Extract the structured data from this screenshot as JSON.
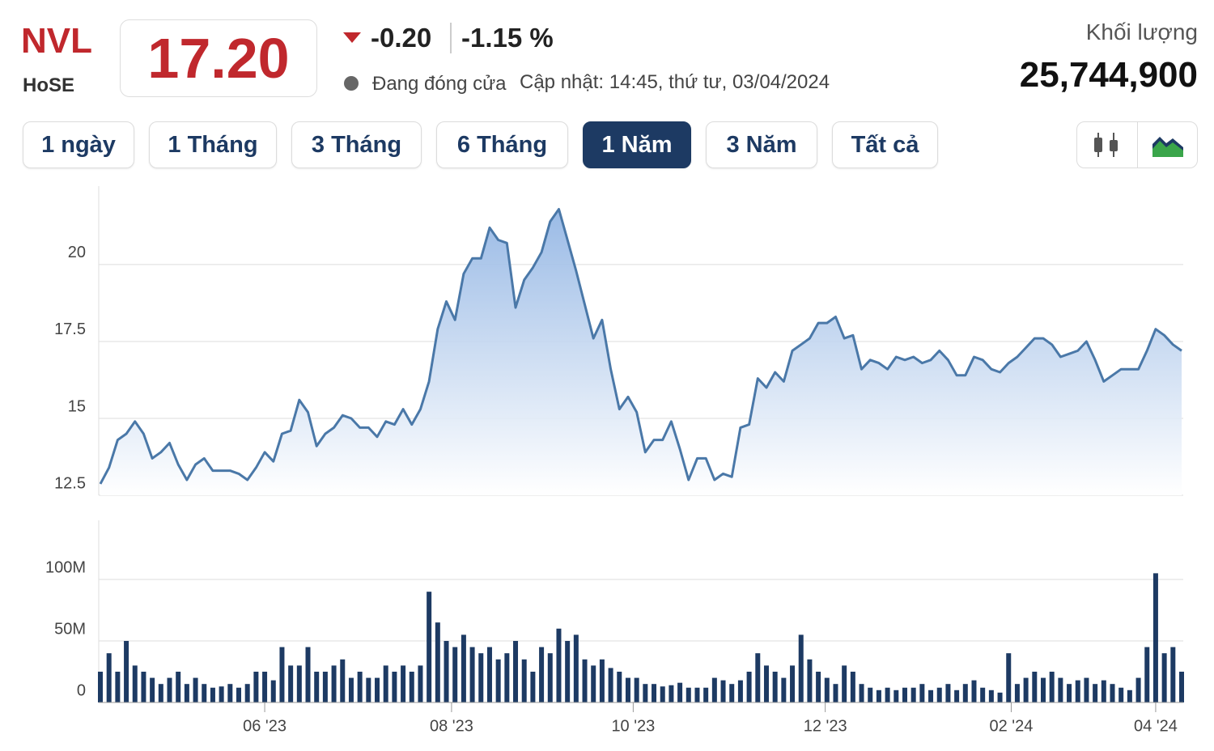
{
  "header": {
    "symbol": "NVL",
    "exchange": "HoSE",
    "price": "17.20",
    "change": "-0.20",
    "change_pct": "-1.15 %",
    "status": "Đang đóng cửa",
    "updated": "Cập nhật: 14:45, thứ tư, 03/04/2024",
    "volume_label": "Khối lượng",
    "volume": "25,744,900"
  },
  "tabs": {
    "items": [
      "1 ngày",
      "1 Tháng",
      "3 Tháng",
      "6 Tháng",
      "1 Năm",
      "3 Năm",
      "Tất cả"
    ],
    "active": 4
  },
  "chart_data": [
    {
      "type": "area",
      "color": "#4a78a8",
      "grid": true,
      "xlim": [
        0,
        125
      ],
      "ylim": [
        12.5,
        22.55
      ],
      "yticks": [
        12.5,
        15,
        17.5,
        20
      ],
      "values": [
        12.87,
        13.4,
        14.3,
        14.5,
        14.9,
        14.5,
        13.7,
        13.9,
        14.2,
        13.5,
        13.0,
        13.5,
        13.7,
        13.3,
        13.3,
        13.3,
        13.2,
        13.0,
        13.4,
        13.9,
        13.6,
        14.5,
        14.6,
        15.6,
        15.2,
        14.1,
        14.5,
        14.7,
        15.1,
        15.0,
        14.7,
        14.7,
        14.4,
        14.9,
        14.8,
        15.3,
        14.8,
        15.3,
        16.2,
        17.9,
        18.8,
        18.2,
        19.7,
        20.2,
        20.2,
        21.2,
        20.8,
        20.7,
        18.6,
        19.5,
        19.9,
        20.4,
        21.4,
        21.8,
        20.8,
        19.8,
        18.7,
        17.6,
        18.2,
        16.6,
        15.3,
        15.7,
        15.2,
        13.9,
        14.3,
        14.3,
        14.9,
        14.0,
        13.0,
        13.7,
        13.7,
        13.0,
        13.2,
        13.1,
        14.7,
        14.8,
        16.3,
        16.0,
        16.5,
        16.2,
        17.2,
        17.4,
        17.6,
        18.1,
        18.1,
        18.3,
        17.6,
        17.7,
        16.6,
        16.9,
        16.8,
        16.6,
        17.0,
        16.9,
        17.0,
        16.8,
        16.9,
        17.2,
        16.9,
        16.4,
        16.4,
        17.0,
        16.9,
        16.6,
        16.5,
        16.8,
        17.0,
        17.3,
        17.6,
        17.6,
        17.4,
        17.0,
        17.1,
        17.2,
        17.5,
        16.9,
        16.2,
        16.4,
        16.6,
        16.6,
        16.6,
        17.2,
        17.9,
        17.7,
        17.4,
        17.2
      ]
    },
    {
      "type": "bar",
      "color": "#1d3a63",
      "grid": true,
      "xlim": [
        0,
        125
      ],
      "ylim": [
        0,
        148000000
      ],
      "yticks": [
        0,
        {
          "value": 50000000,
          "label": "50M"
        },
        {
          "value": 100000000,
          "label": "100M"
        }
      ],
      "xticks": [
        {
          "value": 19.0,
          "label": "06 '23"
        },
        {
          "value": 40.6,
          "label": "08 '23"
        },
        {
          "value": 61.6,
          "label": "10 '23"
        },
        {
          "value": 83.8,
          "label": "12 '23"
        },
        {
          "value": 105.3,
          "label": "02 '24"
        },
        {
          "value": 122.0,
          "label": "04 '24"
        }
      ],
      "values": [
        25000000,
        40000000,
        25000000,
        50000000,
        30000000,
        25000000,
        20000000,
        15000000,
        20000000,
        25000000,
        15000000,
        20000000,
        15000000,
        12000000,
        13000000,
        15000000,
        12000000,
        15000000,
        25000000,
        25000000,
        18000000,
        45000000,
        30000000,
        30000000,
        45000000,
        25000000,
        25000000,
        30000000,
        35000000,
        20000000,
        25000000,
        20000000,
        20000000,
        30000000,
        25000000,
        30000000,
        25000000,
        30000000,
        90000000,
        65000000,
        50000000,
        45000000,
        55000000,
        45000000,
        40000000,
        45000000,
        35000000,
        40000000,
        50000000,
        35000000,
        25000000,
        45000000,
        40000000,
        60000000,
        50000000,
        55000000,
        35000000,
        30000000,
        35000000,
        28000000,
        25000000,
        20000000,
        20000000,
        15000000,
        15000000,
        13000000,
        14000000,
        16000000,
        12000000,
        12000000,
        12000000,
        20000000,
        18000000,
        15000000,
        18000000,
        25000000,
        40000000,
        30000000,
        25000000,
        20000000,
        30000000,
        55000000,
        35000000,
        25000000,
        20000000,
        15000000,
        30000000,
        25000000,
        15000000,
        12000000,
        10000000,
        12000000,
        10000000,
        12000000,
        12000000,
        15000000,
        10000000,
        12000000,
        15000000,
        10000000,
        15000000,
        18000000,
        12000000,
        10000000,
        8000000,
        40000000,
        15000000,
        20000000,
        25000000,
        20000000,
        25000000,
        20000000,
        15000000,
        18000000,
        20000000,
        15000000,
        18000000,
        15000000,
        12000000,
        10000000,
        20000000,
        45000000,
        105000000,
        40000000,
        45000000,
        25000000
      ]
    }
  ]
}
